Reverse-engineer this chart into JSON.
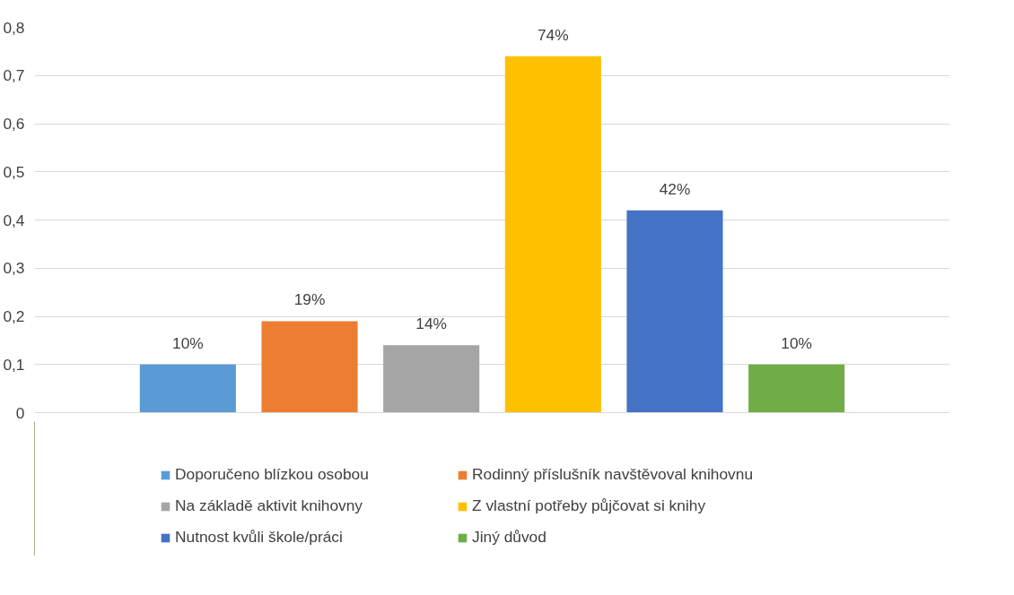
{
  "chart_data": {
    "type": "bar",
    "categories": [
      null
    ],
    "series": [
      {
        "name": "Doporučeno blízkou osobou",
        "color": "#5b9bd5",
        "values": [
          0.1
        ],
        "value_labels": [
          "10%"
        ]
      },
      {
        "name": "Rodinný příslušník navštěvoval knihovnu",
        "color": "#ed7d31",
        "values": [
          0.19
        ],
        "value_labels": [
          "19%"
        ]
      },
      {
        "name": "Na základě aktivit knihovny",
        "color": "#a5a5a5",
        "values": [
          0.14
        ],
        "value_labels": [
          "14%"
        ]
      },
      {
        "name": "Z vlastní potřeby půjčovat si knihy",
        "color": "#ffc000",
        "values": [
          0.74
        ],
        "value_labels": [
          "74%"
        ]
      },
      {
        "name": "Nutnost kvůli škole/práci",
        "color": "#4472c4",
        "values": [
          0.42
        ],
        "value_labels": [
          "42%"
        ]
      },
      {
        "name": "Jiný důvod",
        "color": "#70ad47",
        "values": [
          0.1
        ],
        "value_labels": [
          "10%"
        ]
      }
    ],
    "ylim": [
      0,
      0.8
    ],
    "yticks": [
      0,
      {
        "value": 0.1,
        "label": "0,1"
      },
      {
        "value": 0.2,
        "label": "0,2"
      },
      {
        "value": 0.3,
        "label": "0,3"
      },
      {
        "value": 0.4,
        "label": "0,4"
      },
      {
        "value": 0.5,
        "label": "0,5"
      },
      {
        "value": 0.6,
        "label": "0,6"
      },
      {
        "value": 0.7,
        "label": "0,7"
      },
      {
        "value": 0.8,
        "label": "0,8"
      }
    ],
    "grid": "y",
    "legend": "bottom"
  }
}
